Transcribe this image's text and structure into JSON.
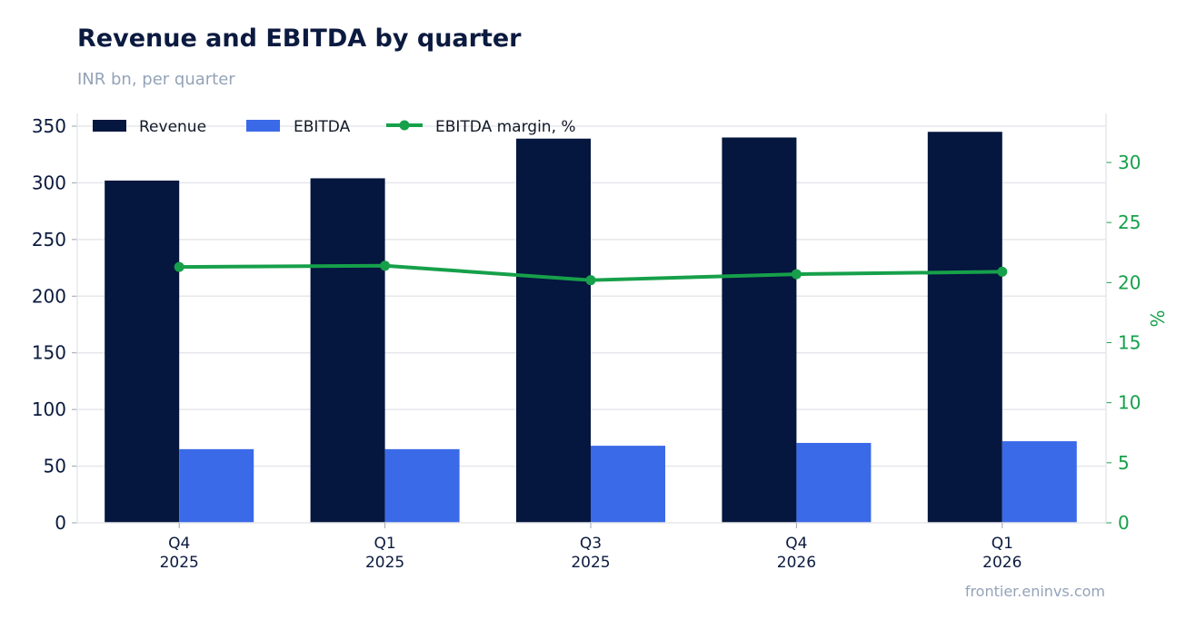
{
  "title": "Revenue and EBITDA by quarter",
  "subtitle": "INR bn, per quarter",
  "source": "frontier.eninvs.com",
  "colors": {
    "revenue": "#05163f",
    "ebitda": "#3b6ae8",
    "margin": "#16a04a",
    "grid": "#e5e7eb",
    "text": "#0b1a3f"
  },
  "chart_data": {
    "type": "bar",
    "categories": [
      [
        "Q4",
        "2025"
      ],
      [
        "Q1",
        "2025"
      ],
      [
        "Q3",
        "2025"
      ],
      [
        "Q4",
        "2026"
      ],
      [
        "Q1",
        "2026"
      ]
    ],
    "series": [
      {
        "name": "Revenue",
        "type": "bar",
        "axis": "left",
        "values": [
          302,
          304,
          339,
          340,
          345
        ]
      },
      {
        "name": "EBITDA",
        "type": "bar",
        "axis": "left",
        "values": [
          65,
          65,
          68,
          70.5,
          72
        ]
      },
      {
        "name": "EBITDA margin, %",
        "type": "line",
        "axis": "right",
        "values": [
          21.3,
          21.4,
          20.2,
          20.7,
          20.9
        ]
      }
    ],
    "y_left": {
      "label": "",
      "range": [
        0,
        360
      ],
      "ticks": [
        0,
        50,
        100,
        150,
        200,
        250,
        300,
        350
      ]
    },
    "y_right": {
      "label": "%",
      "range": [
        0,
        34.2
      ],
      "ticks": [
        0,
        5,
        10,
        15,
        20,
        25,
        30
      ]
    },
    "grid": true,
    "legend_position": "top-left"
  }
}
